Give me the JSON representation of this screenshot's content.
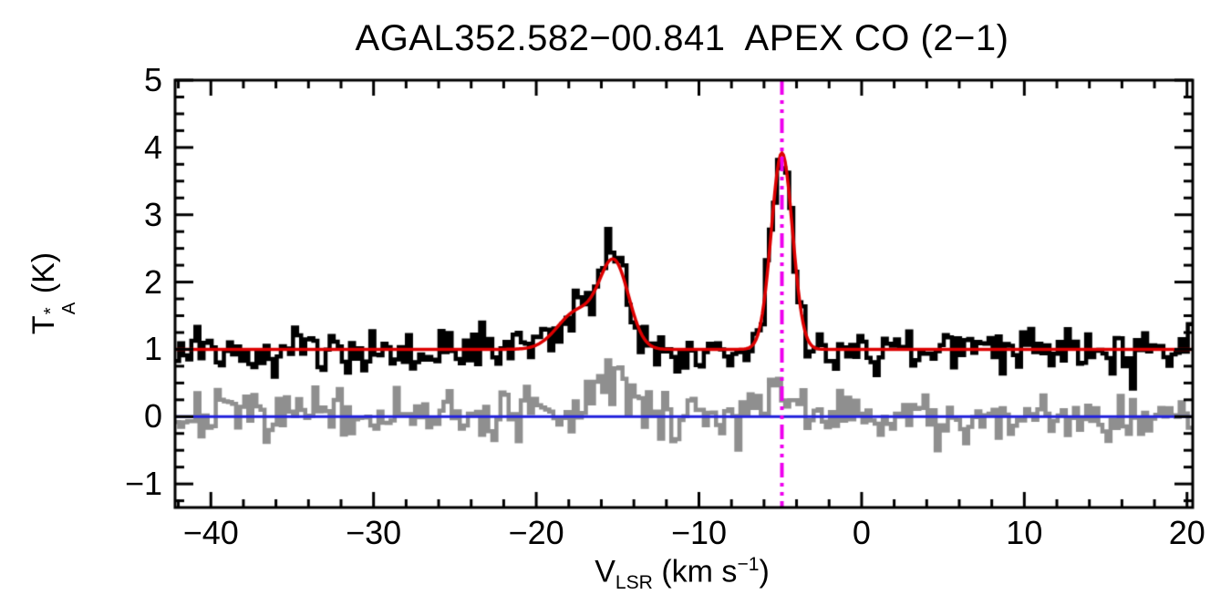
{
  "chart_data": {
    "type": "line",
    "title": "AGAL352.582−00.841  APEX CO (2−1)",
    "xlabel": "VLSR (km s−1)",
    "ylabel": "TA* (K)",
    "xlabel_parts": {
      "var": "V",
      "sub": "LSR",
      "mid": " (km s",
      "sup": "−1",
      "end": ")"
    },
    "ylabel_parts": {
      "var": "T",
      "sup": "*",
      "sub": "A",
      "end": " (K)"
    },
    "xlim": [
      -42.2,
      20.35
    ],
    "ylim": [
      -1.35,
      5.0
    ],
    "grid": false,
    "legend": false,
    "x_tick_values": [
      -40,
      -30,
      -20,
      -10,
      0,
      10,
      20
    ],
    "x_tick_labels": [
      "−40",
      "−30",
      "−20",
      "−10",
      "0",
      "10",
      "20"
    ],
    "y_tick_values": [
      -1,
      0,
      1,
      2,
      3,
      4,
      5
    ],
    "y_tick_labels": [
      "−1",
      "0",
      "1",
      "2",
      "3",
      "4",
      "5"
    ],
    "x_minor_tick_step": 2,
    "y_minor_tick_step": 0.25,
    "channel_width_kms": 0.25,
    "noise_seed": 7,
    "series": [
      {
        "name": "observed CO (2-1) spectrum",
        "style": "histogram",
        "color": "#000000",
        "baseline_K": 1.0,
        "noise_rms_K": 0.17,
        "components": [
          {
            "center_kms": -17.5,
            "amplitude_K": 0.55,
            "sigma_kms": 1.2
          },
          {
            "center_kms": -15.2,
            "amplitude_K": 1.25,
            "sigma_kms": 0.9
          },
          {
            "center_kms": -4.9,
            "amplitude_K": 2.92,
            "sigma_kms": 0.65
          }
        ],
        "peak_K_near_-15_kms": 2.3,
        "peak_K_near_-5_kms": 3.95
      },
      {
        "name": "secondary / residual spectrum",
        "style": "histogram",
        "color": "#8f8f8f",
        "baseline_K": 0.0,
        "noise_rms_K": 0.18,
        "components": [
          {
            "center_kms": -15.3,
            "amplitude_K": 0.55,
            "sigma_kms": 1.2
          },
          {
            "center_kms": -4.9,
            "amplitude_K": 0.45,
            "sigma_kms": 0.6
          }
        ]
      },
      {
        "name": "gaussian fit",
        "style": "curve",
        "color": "#dd0000",
        "baseline_K": 1.0,
        "noise_rms_K": 0,
        "components": [
          {
            "center_kms": -17.5,
            "amplitude_K": 0.55,
            "sigma_kms": 1.2
          },
          {
            "center_kms": -15.2,
            "amplitude_K": 1.25,
            "sigma_kms": 0.9
          },
          {
            "center_kms": -4.9,
            "amplitude_K": 2.92,
            "sigma_kms": 0.65
          }
        ]
      },
      {
        "name": "zero-level baseline",
        "style": "hline",
        "color": "#2222dd",
        "y": 0
      },
      {
        "name": "systemic velocity marker",
        "style": "vline-dashdotdot",
        "color": "#ee00ee",
        "x": -4.9
      }
    ]
  }
}
